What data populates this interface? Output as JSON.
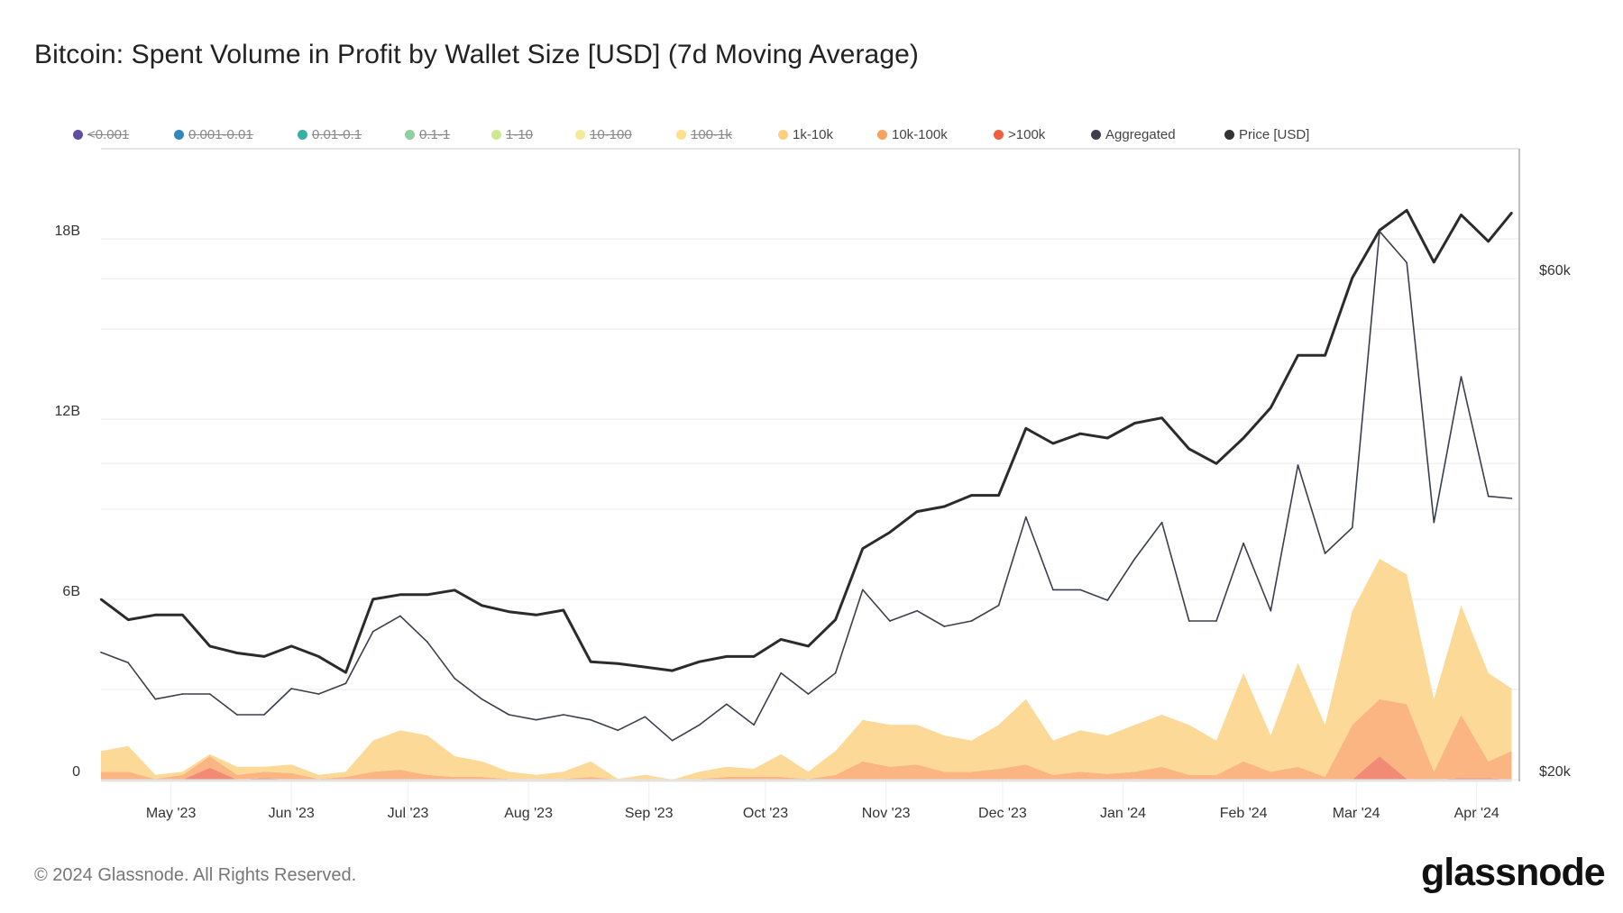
{
  "title": "Bitcoin: Spent Volume in Profit by Wallet Size [USD] (7d Moving Average)",
  "legend": [
    {
      "label": "<0.001",
      "color": "#5e4fa2",
      "hidden": true
    },
    {
      "label": "0.001-0.01",
      "color": "#3288bd",
      "hidden": true
    },
    {
      "label": "0.01-0.1",
      "color": "#3aaea5",
      "hidden": true
    },
    {
      "label": "0.1-1",
      "color": "#8fd19e",
      "hidden": true
    },
    {
      "label": "1-10",
      "color": "#cde98f",
      "hidden": true
    },
    {
      "label": "10-100",
      "color": "#f3eb95",
      "hidden": true
    },
    {
      "label": "100-1k",
      "color": "#fde08b",
      "hidden": true
    },
    {
      "label": "1k-10k",
      "color": "#fdcf7f",
      "hidden": false
    },
    {
      "label": "10k-100k",
      "color": "#f9a35a",
      "hidden": false
    },
    {
      "label": ">100k",
      "color": "#ef5e3f",
      "hidden": false
    },
    {
      "label": "Aggregated",
      "color": "#3b3f4c",
      "hidden": false
    },
    {
      "label": "Price [USD]",
      "color": "#333333",
      "hidden": false
    }
  ],
  "footer": "© 2024 Glassnode. All Rights Reserved.",
  "logo": "glassnode",
  "chart_data": {
    "type": "area",
    "title": "Bitcoin: Spent Volume in Profit by Wallet Size [USD] (7d Moving Average)",
    "x": [
      "2023-04-13",
      "2023-04-20",
      "2023-04-27",
      "2023-05-04",
      "2023-05-11",
      "2023-05-18",
      "2023-05-25",
      "2023-06-01",
      "2023-06-08",
      "2023-06-15",
      "2023-06-22",
      "2023-06-29",
      "2023-07-06",
      "2023-07-13",
      "2023-07-20",
      "2023-07-27",
      "2023-08-03",
      "2023-08-10",
      "2023-08-17",
      "2023-08-24",
      "2023-08-31",
      "2023-09-07",
      "2023-09-14",
      "2023-09-21",
      "2023-09-28",
      "2023-10-05",
      "2023-10-12",
      "2023-10-19",
      "2023-10-26",
      "2023-11-02",
      "2023-11-09",
      "2023-11-16",
      "2023-11-23",
      "2023-11-30",
      "2023-12-07",
      "2023-12-14",
      "2023-12-21",
      "2023-12-28",
      "2024-01-04",
      "2024-01-11",
      "2024-01-18",
      "2024-01-25",
      "2024-02-01",
      "2024-02-08",
      "2024-02-15",
      "2024-02-22",
      "2024-02-29",
      "2024-03-07",
      "2024-03-14",
      "2024-03-21",
      "2024-03-28",
      "2024-04-04",
      "2024-04-10"
    ],
    "x_ticks": [
      {
        "date": "2023-05-01",
        "label": "May '23"
      },
      {
        "date": "2023-06-01",
        "label": "Jun '23"
      },
      {
        "date": "2023-07-01",
        "label": "Jul '23"
      },
      {
        "date": "2023-08-01",
        "label": "Aug '23"
      },
      {
        "date": "2023-09-01",
        "label": "Sep '23"
      },
      {
        "date": "2023-10-01",
        "label": "Oct '23"
      },
      {
        "date": "2023-11-01",
        "label": "Nov '23"
      },
      {
        "date": "2023-12-01",
        "label": "Dec '23"
      },
      {
        "date": "2024-01-01",
        "label": "Jan '24"
      },
      {
        "date": "2024-02-01",
        "label": "Feb '24"
      },
      {
        "date": "2024-03-01",
        "label": "Mar '24"
      },
      {
        "date": "2024-04-01",
        "label": "Apr '24"
      }
    ],
    "y_left": {
      "unit": "USD",
      "ylim": [
        0,
        21
      ],
      "ticks": [
        {
          "value": 0,
          "label": "0"
        },
        {
          "value": 6,
          "label": "6B"
        },
        {
          "value": 12,
          "label": "12B"
        },
        {
          "value": 18,
          "label": "18B"
        }
      ],
      "grid_step": 3
    },
    "y_right": {
      "scale": "log",
      "ticks": [
        {
          "value": 20000,
          "label": "$20k"
        },
        {
          "value": 60000,
          "label": "$60k"
        }
      ],
      "grid_values": [
        40000,
        60000
      ]
    },
    "grid": true,
    "legend_position": "top",
    "stacked_series": [
      {
        "name": ">100k",
        "color": "#f28b75",
        "values": [
          0,
          0,
          0,
          0,
          0.4,
          0,
          0.05,
          0,
          0,
          0,
          0,
          0,
          0,
          0,
          0,
          0,
          0,
          0,
          0,
          0,
          0,
          0,
          0,
          0,
          0,
          0,
          0,
          0,
          0,
          0,
          0,
          0,
          0,
          0,
          0,
          0,
          0,
          0,
          0.02,
          0,
          0,
          0,
          0,
          0,
          0,
          0,
          0,
          0.78,
          0.02,
          0,
          0.05,
          0.05,
          0
        ]
      },
      {
        "name": "10k-100k",
        "color": "#fbb583",
        "values": [
          0.26,
          0.26,
          0.02,
          0.16,
          0.38,
          0.16,
          0.21,
          0.22,
          0.02,
          0.09,
          0.26,
          0.33,
          0.16,
          0.09,
          0.09,
          0.02,
          0.02,
          0.02,
          0.09,
          0,
          0.02,
          0,
          0.02,
          0.09,
          0.09,
          0.09,
          0.02,
          0.16,
          0.61,
          0.43,
          0.5,
          0.26,
          0.26,
          0.36,
          0.5,
          0.16,
          0.26,
          0.19,
          0.24,
          0.43,
          0.16,
          0.16,
          0.61,
          0.26,
          0.43,
          0.09,
          1.82,
          1.9,
          2.49,
          0.26,
          2.11,
          0.56,
          0.95
        ]
      },
      {
        "name": "1k-10k",
        "color": "#fdd998",
        "values": [
          0.69,
          0.86,
          0.14,
          0.1,
          0.07,
          0.27,
          0.17,
          0.28,
          0.14,
          0.17,
          1.04,
          1.31,
          1.31,
          0.69,
          0.52,
          0.24,
          0.14,
          0.24,
          0.52,
          0.02,
          0.14,
          0,
          0.24,
          0.34,
          0.27,
          0.76,
          0.24,
          0.79,
          1.38,
          1.39,
          1.32,
          1.21,
          1.04,
          1.46,
          2.18,
          1.14,
          1.38,
          1.28,
          1.56,
          1.73,
          1.66,
          1.14,
          2.94,
          1.21,
          3.46,
          1.73,
          3.8,
          4.67,
          4.32,
          2.42,
          3.64,
          2.94,
          2.08
        ]
      }
    ],
    "aggregated": {
      "name": "Aggregated",
      "color": "#3b3f4c",
      "values": [
        4.24,
        3.89,
        2.68,
        2.85,
        2.85,
        2.16,
        2.16,
        3.03,
        2.85,
        3.2,
        4.93,
        5.45,
        4.58,
        3.37,
        2.68,
        2.16,
        1.99,
        2.16,
        1.99,
        1.64,
        2.09,
        1.3,
        1.82,
        2.51,
        1.82,
        3.55,
        2.85,
        3.55,
        6.32,
        5.28,
        5.62,
        5.1,
        5.28,
        5.8,
        8.74,
        6.32,
        6.32,
        5.97,
        7.35,
        8.56,
        5.28,
        5.28,
        7.87,
        5.62,
        10.47,
        7.53,
        8.39,
        18.25,
        17.21,
        8.56,
        13.41,
        9.43,
        9.36
      ]
    },
    "price": {
      "name": "Price [USD]",
      "color": "#2b2b2b",
      "values": [
        29700,
        28400,
        28700,
        28700,
        26800,
        26400,
        26200,
        26800,
        26200,
        25300,
        29700,
        30000,
        30000,
        30300,
        29300,
        28900,
        28700,
        29000,
        25900,
        25800,
        25600,
        25400,
        25900,
        26200,
        26200,
        27200,
        26800,
        28400,
        33200,
        34400,
        36000,
        36400,
        37300,
        37300,
        43200,
        41800,
        42700,
        42300,
        43700,
        44200,
        41300,
        40000,
        42300,
        45200,
        50700,
        50700,
        60100,
        66700,
        69700,
        62200,
        69000,
        65100,
        69300
      ]
    }
  }
}
